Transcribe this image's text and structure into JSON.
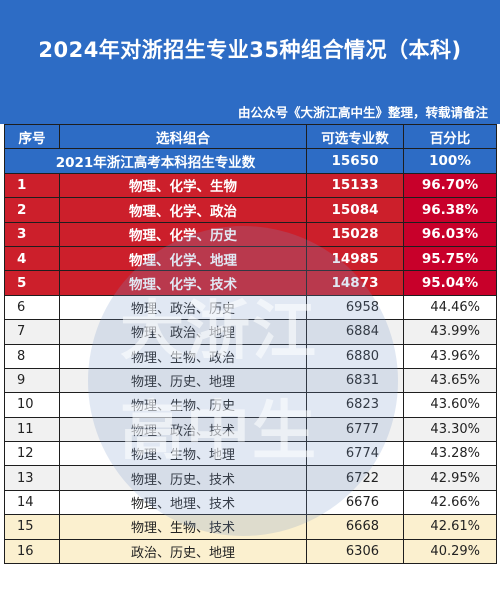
{
  "header": {
    "title": "2024年对浙招生专业35种组合情况（本科)",
    "source": "由公众号《大浙江高中生》整理，转载请备注"
  },
  "table": {
    "columns": [
      "序号",
      "选科组合",
      "可选专业数",
      "百分比"
    ],
    "summary": {
      "label": "2021年浙江高考本科招生专业数",
      "count": "15650",
      "pct": "100%"
    },
    "rows": [
      {
        "idx": "1",
        "combo": "物理、化学、生物",
        "count": "15133",
        "pct": "96.70%"
      },
      {
        "idx": "2",
        "combo": "物理、化学、政治",
        "count": "15084",
        "pct": "96.38%"
      },
      {
        "idx": "3",
        "combo": "物理、化学、历史",
        "count": "15028",
        "pct": "96.03%"
      },
      {
        "idx": "4",
        "combo": "物理、化学、地理",
        "count": "14985",
        "pct": "95.75%"
      },
      {
        "idx": "5",
        "combo": "物理、化学、技术",
        "count": "14873",
        "pct": "95.04%"
      },
      {
        "idx": "6",
        "combo": "物理、政治、历史",
        "count": "6958",
        "pct": "44.46%"
      },
      {
        "idx": "7",
        "combo": "物理、政治、地理",
        "count": "6884",
        "pct": "43.99%"
      },
      {
        "idx": "8",
        "combo": "物理、生物、政治",
        "count": "6880",
        "pct": "43.96%"
      },
      {
        "idx": "9",
        "combo": "物理、历史、地理",
        "count": "6831",
        "pct": "43.65%"
      },
      {
        "idx": "10",
        "combo": "物理、生物、历史",
        "count": "6823",
        "pct": "43.60%"
      },
      {
        "idx": "11",
        "combo": "物理、政治、技术",
        "count": "6777",
        "pct": "43.30%"
      },
      {
        "idx": "12",
        "combo": "物理、生物、地理",
        "count": "6774",
        "pct": "43.28%"
      },
      {
        "idx": "13",
        "combo": "物理、历史、技术",
        "count": "6722",
        "pct": "42.95%"
      },
      {
        "idx": "14",
        "combo": "物理、地理、技术",
        "count": "6676",
        "pct": "42.66%"
      },
      {
        "idx": "15",
        "combo": "物理、生物、技术",
        "count": "6668",
        "pct": "42.61%"
      },
      {
        "idx": "16",
        "combo": "政治、历史、地理",
        "count": "6306",
        "pct": "40.29%"
      }
    ]
  },
  "watermark": {
    "line1": "大浙江",
    "line2": "高中生"
  },
  "colors": {
    "header_blue": "#2d6cc5",
    "top_red": "#cc1f2b",
    "cream": "#fbf0cf"
  }
}
